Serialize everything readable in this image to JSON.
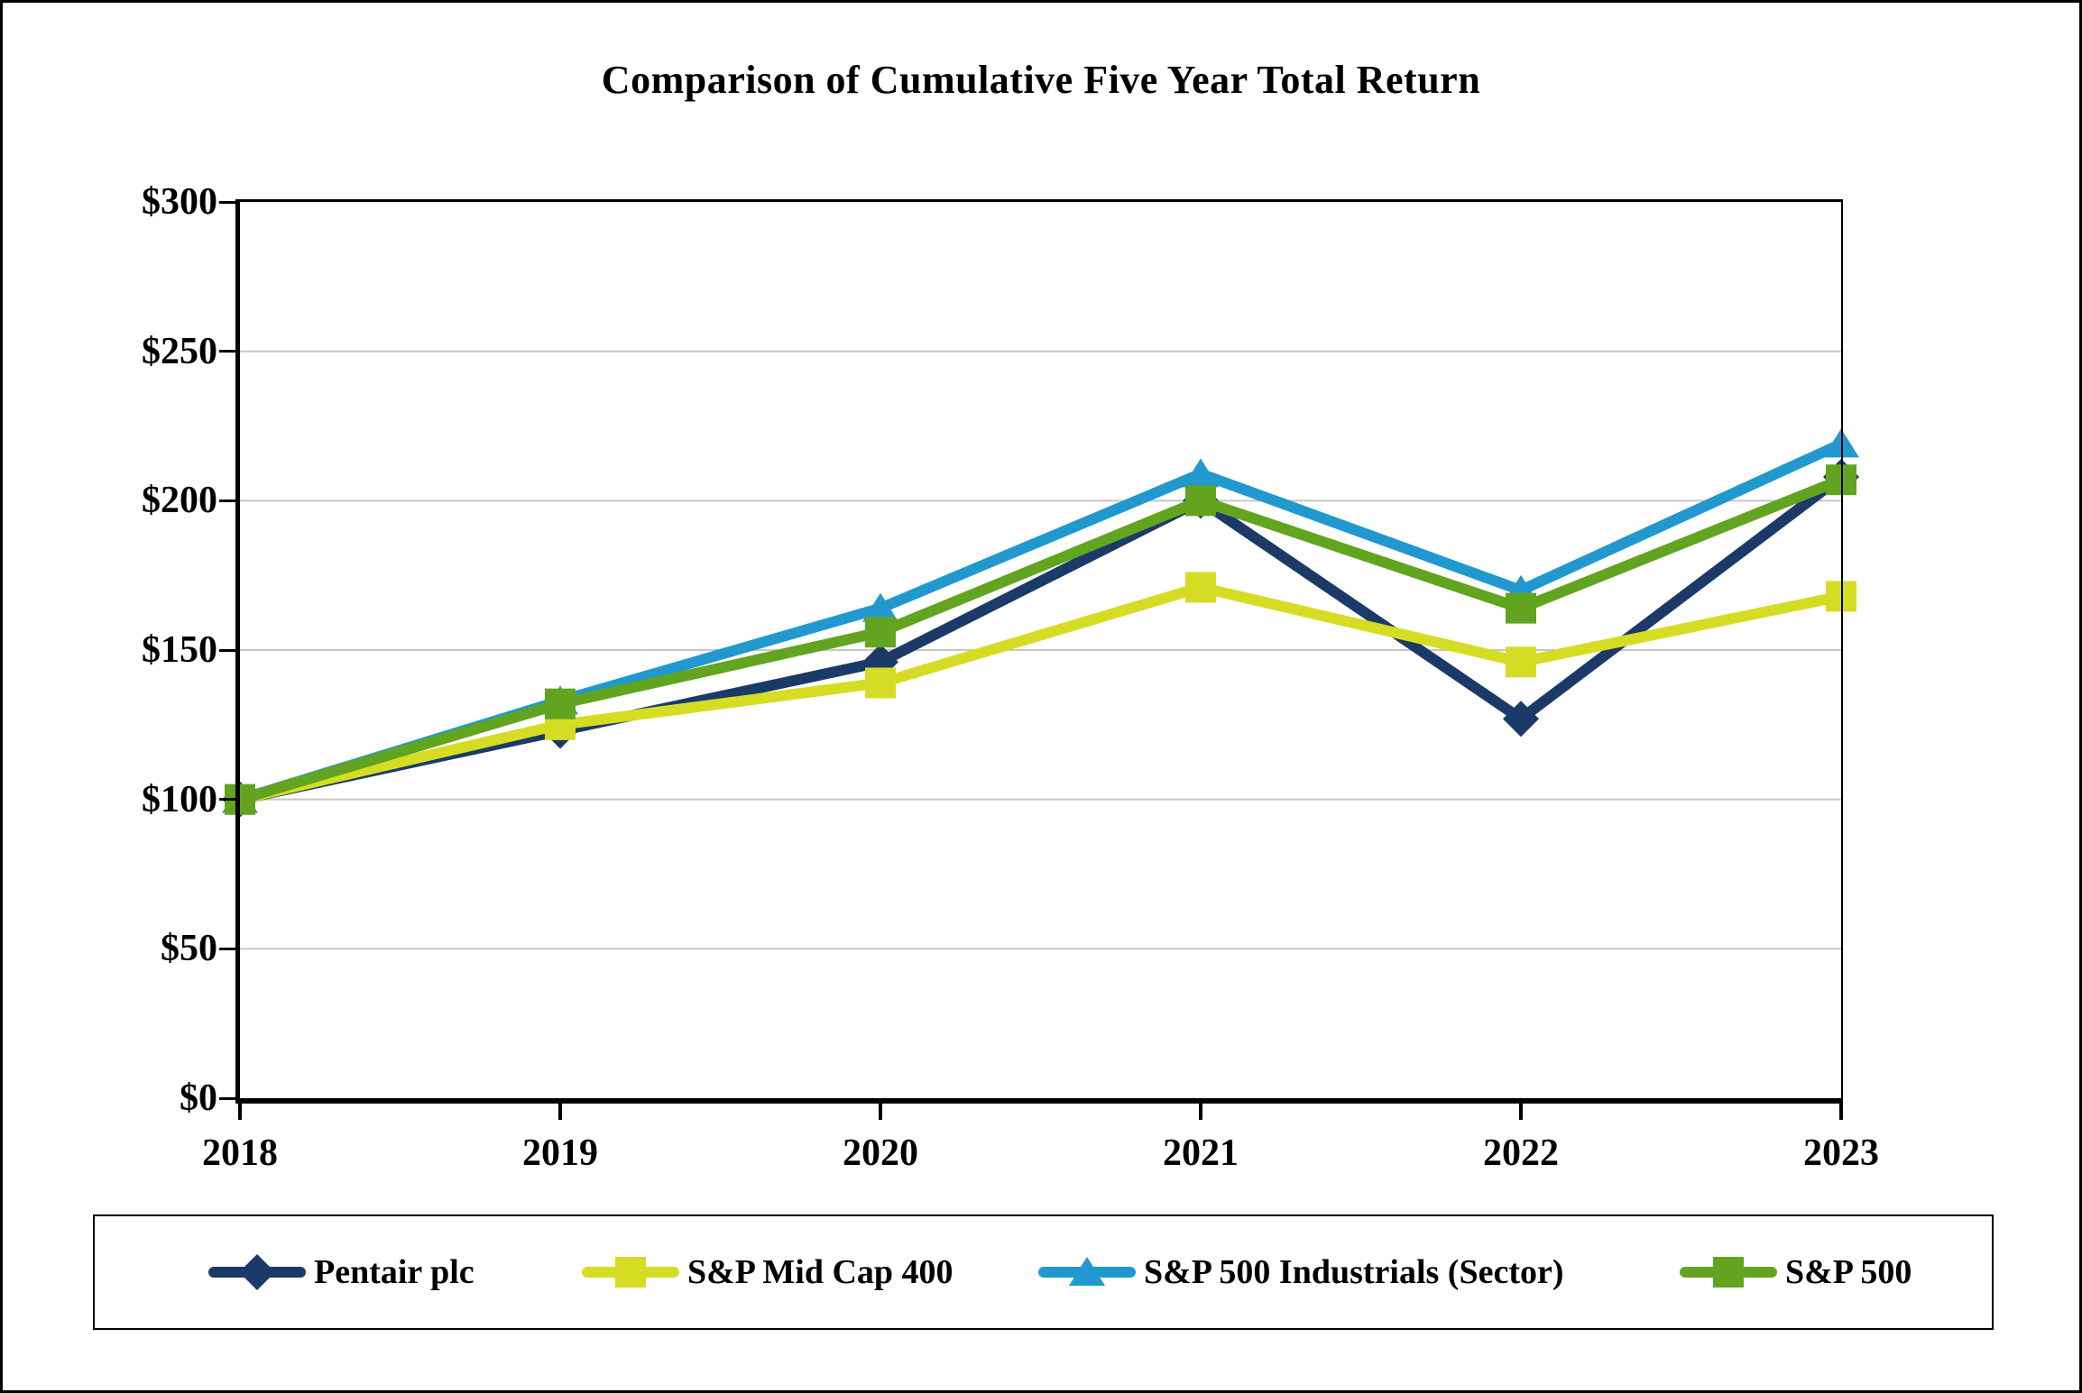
{
  "title": "Comparison of Cumulative Five Year Total Return",
  "chart_data": {
    "type": "line",
    "categories": [
      "2018",
      "2019",
      "2020",
      "2021",
      "2022",
      "2023"
    ],
    "series": [
      {
        "name": "Pentair plc",
        "marker": "diamond",
        "color": "#1B3A68",
        "values": [
          100,
          123,
          146,
          200,
          127,
          208
        ]
      },
      {
        "name": "S&P Mid Cap 400",
        "marker": "square",
        "color": "#D4DD24",
        "values": [
          100,
          125,
          139,
          171,
          146,
          168
        ]
      },
      {
        "name": "S&P 500 Industrials (Sector)",
        "marker": "triangle",
        "color": "#2199CE",
        "values": [
          100,
          133,
          164,
          209,
          170,
          219
        ]
      },
      {
        "name": "S&P 500",
        "marker": "square",
        "color": "#62A420",
        "values": [
          100,
          132,
          156,
          200,
          164,
          207
        ]
      }
    ],
    "ytick_labels": [
      "$0",
      "$50",
      "$100",
      "$150",
      "$200",
      "$250",
      "$300"
    ],
    "ylim": [
      0,
      300
    ],
    "ytick_step": 50,
    "xlabel": "",
    "ylabel": "",
    "grid": true,
    "gridline_color": "#C6C6C6",
    "axis_color": "#000000",
    "legend_position": "bottom"
  }
}
